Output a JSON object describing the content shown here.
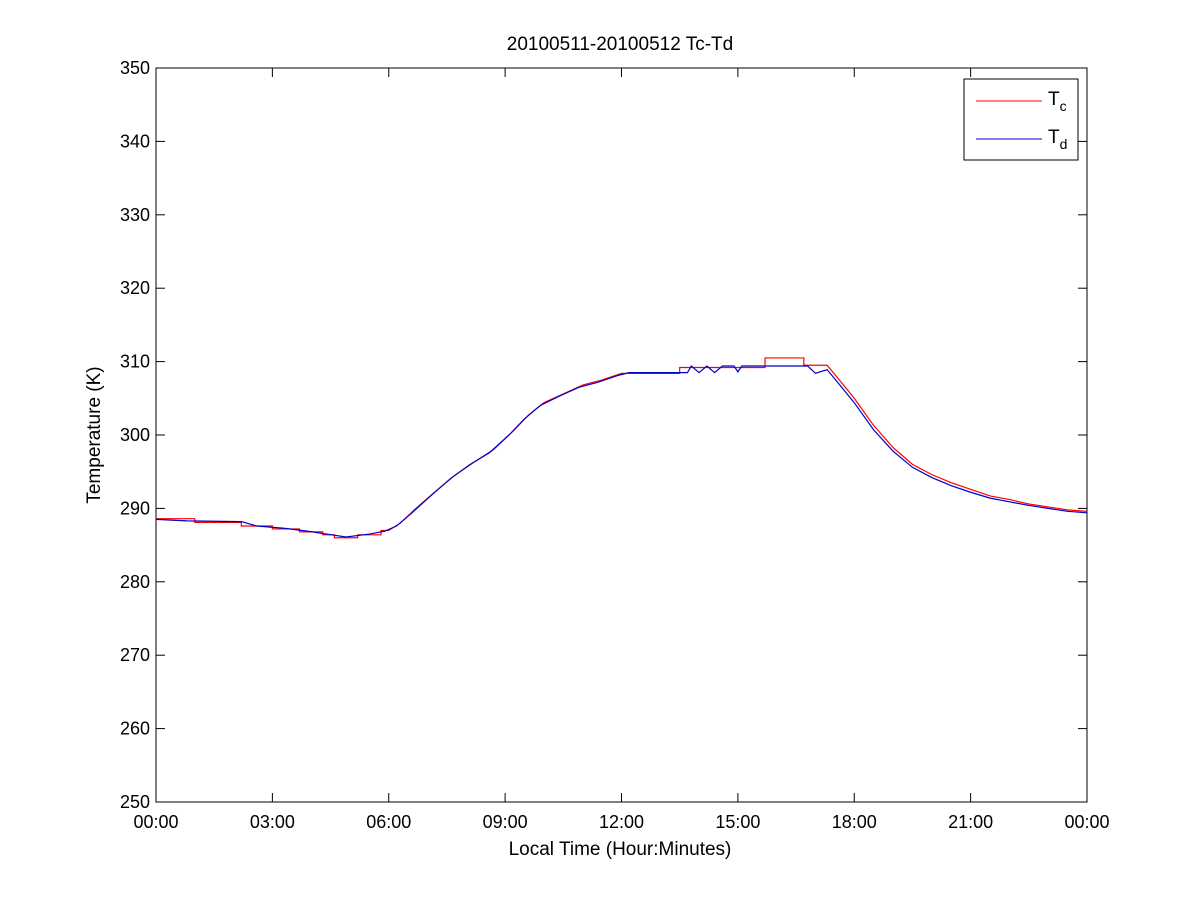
{
  "chart_data": {
    "type": "line",
    "title": "20100511-20100512 Tc-Td",
    "xlabel": "Local Time (Hour:Minutes)",
    "ylabel": "Temperature (K)",
    "xlim": [
      0,
      24
    ],
    "ylim": [
      250,
      350
    ],
    "x_ticks": [
      {
        "value": 0,
        "label": "00:00"
      },
      {
        "value": 3,
        "label": "03:00"
      },
      {
        "value": 6,
        "label": "06:00"
      },
      {
        "value": 9,
        "label": "09:00"
      },
      {
        "value": 12,
        "label": "12:00"
      },
      {
        "value": 15,
        "label": "15:00"
      },
      {
        "value": 18,
        "label": "18:00"
      },
      {
        "value": 21,
        "label": "21:00"
      },
      {
        "value": 24,
        "label": "00:00"
      }
    ],
    "y_ticks": [
      250,
      260,
      270,
      280,
      290,
      300,
      310,
      320,
      330,
      340,
      350
    ],
    "grid": false,
    "legend_position": "top-right",
    "series": [
      {
        "name": "T",
        "name_subscript": "c",
        "color": "#ff0000",
        "points": [
          [
            0,
            288.6
          ],
          [
            1.0,
            288.6
          ],
          [
            1.0,
            288.1
          ],
          [
            2.2,
            288.1
          ],
          [
            2.2,
            287.6
          ],
          [
            3.0,
            287.6
          ],
          [
            3.0,
            287.2
          ],
          [
            3.7,
            287.2
          ],
          [
            3.7,
            286.8
          ],
          [
            4.3,
            286.8
          ],
          [
            4.3,
            286.4
          ],
          [
            4.6,
            286.4
          ],
          [
            4.6,
            286.0
          ],
          [
            5.2,
            286.0
          ],
          [
            5.2,
            286.4
          ],
          [
            5.8,
            286.4
          ],
          [
            5.8,
            287.0
          ],
          [
            6.0,
            287.0
          ],
          [
            6.3,
            288.0
          ],
          [
            6.7,
            290.0
          ],
          [
            7.2,
            292.3
          ],
          [
            7.7,
            294.5
          ],
          [
            8.2,
            296.3
          ],
          [
            8.7,
            298.0
          ],
          [
            9.2,
            300.5
          ],
          [
            9.6,
            302.7
          ],
          [
            10.0,
            304.4
          ],
          [
            10.5,
            305.6
          ],
          [
            11.0,
            306.8
          ],
          [
            11.5,
            307.5
          ],
          [
            12.0,
            308.4
          ],
          [
            13.5,
            308.4
          ],
          [
            13.5,
            309.2
          ],
          [
            15.7,
            309.2
          ],
          [
            15.7,
            310.5
          ],
          [
            16.7,
            310.5
          ],
          [
            16.7,
            309.5
          ],
          [
            17.3,
            309.5
          ],
          [
            17.6,
            307.6
          ],
          [
            18.0,
            305.0
          ],
          [
            18.5,
            301.3
          ],
          [
            19.0,
            298.3
          ],
          [
            19.5,
            296.0
          ],
          [
            20.0,
            294.6
          ],
          [
            20.5,
            293.5
          ],
          [
            21.0,
            292.6
          ],
          [
            21.5,
            291.7
          ],
          [
            22.0,
            291.2
          ],
          [
            22.5,
            290.6
          ],
          [
            23.0,
            290.2
          ],
          [
            23.5,
            289.8
          ],
          [
            24.0,
            289.6
          ]
        ]
      },
      {
        "name": "T",
        "name_subscript": "d",
        "color": "#0000cc",
        "points": [
          [
            0,
            288.5
          ],
          [
            0.8,
            288.3
          ],
          [
            2.2,
            288.2
          ],
          [
            2.6,
            287.6
          ],
          [
            3.3,
            287.3
          ],
          [
            3.9,
            286.9
          ],
          [
            4.4,
            286.5
          ],
          [
            4.9,
            286.1
          ],
          [
            5.5,
            286.5
          ],
          [
            5.9,
            286.9
          ],
          [
            6.2,
            287.6
          ],
          [
            6.6,
            289.4
          ],
          [
            7.1,
            291.8
          ],
          [
            7.6,
            294.1
          ],
          [
            8.1,
            296.0
          ],
          [
            8.6,
            297.6
          ],
          [
            9.1,
            300.0
          ],
          [
            9.5,
            302.2
          ],
          [
            9.9,
            304.0
          ],
          [
            10.4,
            305.3
          ],
          [
            10.9,
            306.5
          ],
          [
            11.4,
            307.2
          ],
          [
            11.9,
            308.1
          ],
          [
            12.2,
            308.5
          ],
          [
            13.7,
            308.5
          ],
          [
            13.8,
            309.4
          ],
          [
            14.0,
            308.5
          ],
          [
            14.2,
            309.4
          ],
          [
            14.4,
            308.5
          ],
          [
            14.6,
            309.4
          ],
          [
            14.9,
            309.4
          ],
          [
            15.0,
            308.6
          ],
          [
            15.1,
            309.4
          ],
          [
            16.8,
            309.4
          ],
          [
            17.0,
            308.4
          ],
          [
            17.3,
            308.9
          ],
          [
            17.6,
            307.0
          ],
          [
            18.0,
            304.4
          ],
          [
            18.5,
            300.7
          ],
          [
            19.0,
            297.8
          ],
          [
            19.5,
            295.6
          ],
          [
            20.0,
            294.2
          ],
          [
            20.5,
            293.1
          ],
          [
            21.0,
            292.2
          ],
          [
            21.5,
            291.4
          ],
          [
            22.0,
            290.9
          ],
          [
            22.5,
            290.4
          ],
          [
            23.0,
            290.0
          ],
          [
            23.5,
            289.6
          ],
          [
            24.0,
            289.4
          ]
        ]
      }
    ]
  }
}
